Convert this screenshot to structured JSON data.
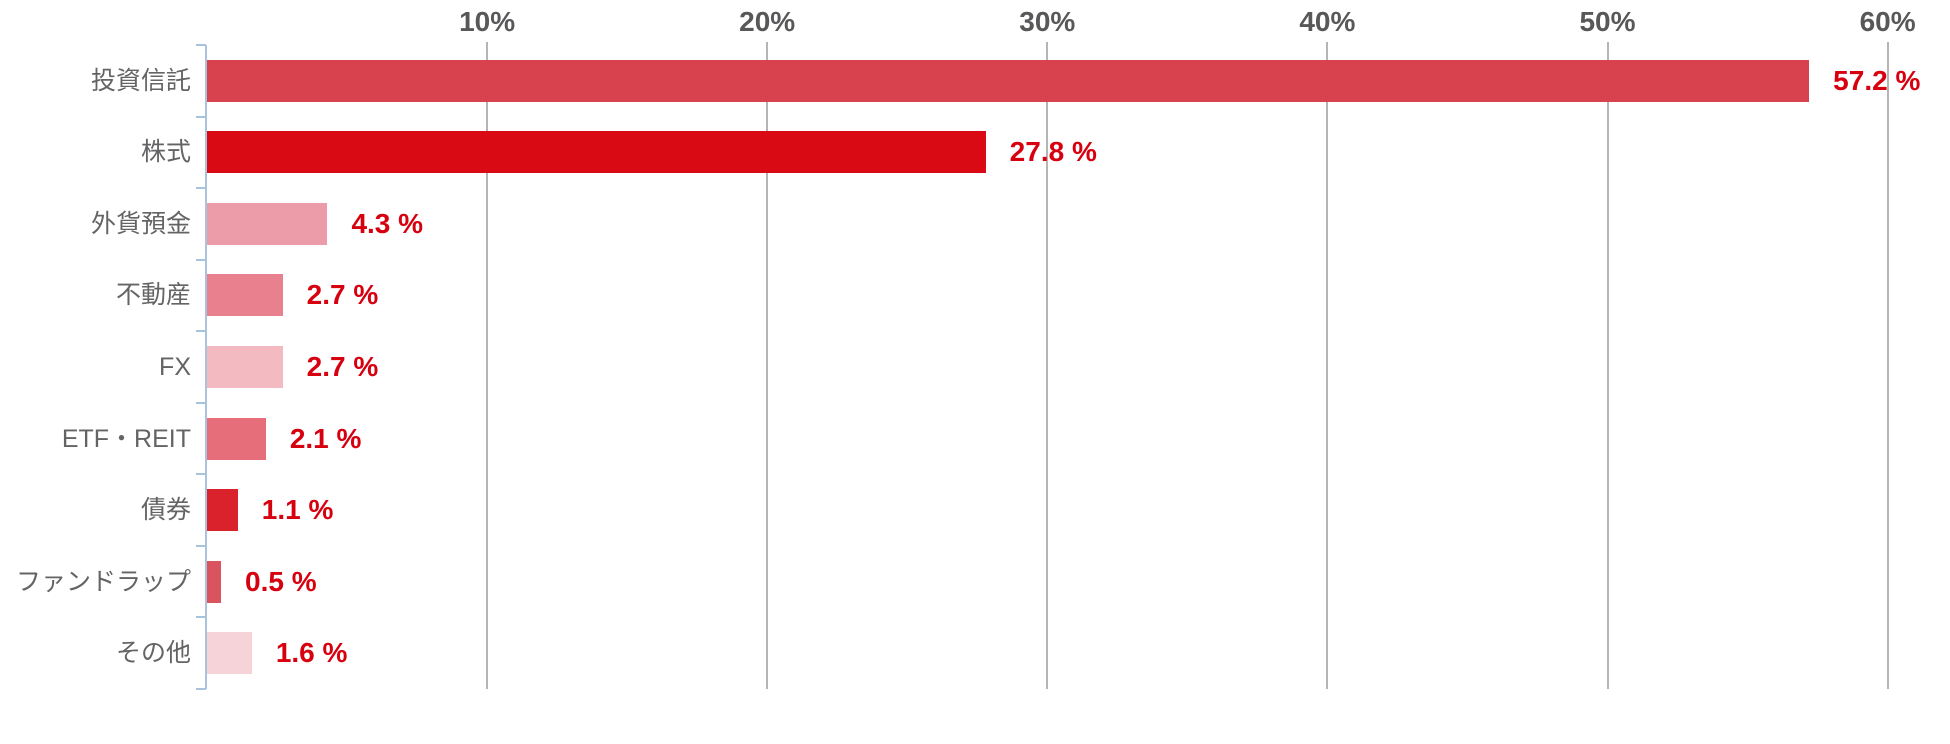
{
  "chart_data": {
    "type": "bar",
    "orientation": "horizontal",
    "categories": [
      "投資信託",
      "株式",
      "外貨預金",
      "不動産",
      "FX",
      "ETF・REIT",
      "債券",
      "ファンドラップ",
      "その他"
    ],
    "values": [
      57.2,
      27.8,
      4.3,
      2.7,
      2.7,
      2.1,
      1.1,
      0.5,
      1.6
    ],
    "value_labels": [
      "57.2 %",
      "27.8 %",
      "4.3 %",
      "2.7 %",
      "2.7 %",
      "2.1 %",
      "1.1 %",
      "0.5 %",
      "1.6 %"
    ],
    "bar_colors": [
      "#d8414e",
      "#da0a15",
      "#ec9ca8",
      "#e8818d",
      "#f3bac1",
      "#e66e7b",
      "#d9222c",
      "#d9545f",
      "#f6d3d8"
    ],
    "x_axis": {
      "position": "top",
      "min": 0,
      "max": 60,
      "tick_values": [
        10,
        20,
        30,
        40,
        50,
        60
      ],
      "tick_labels": [
        "10%",
        "20%",
        "30%",
        "40%",
        "50%",
        "60%"
      ]
    },
    "grid": "vertical",
    "legend": false,
    "title": "",
    "colors": {
      "background": "#ffffff",
      "grid_line": "#b5b5b5",
      "axis_line": "#a9c3dc",
      "tick_label": "#58585a",
      "category_label": "#646466",
      "value_label": "#d7000f"
    }
  }
}
